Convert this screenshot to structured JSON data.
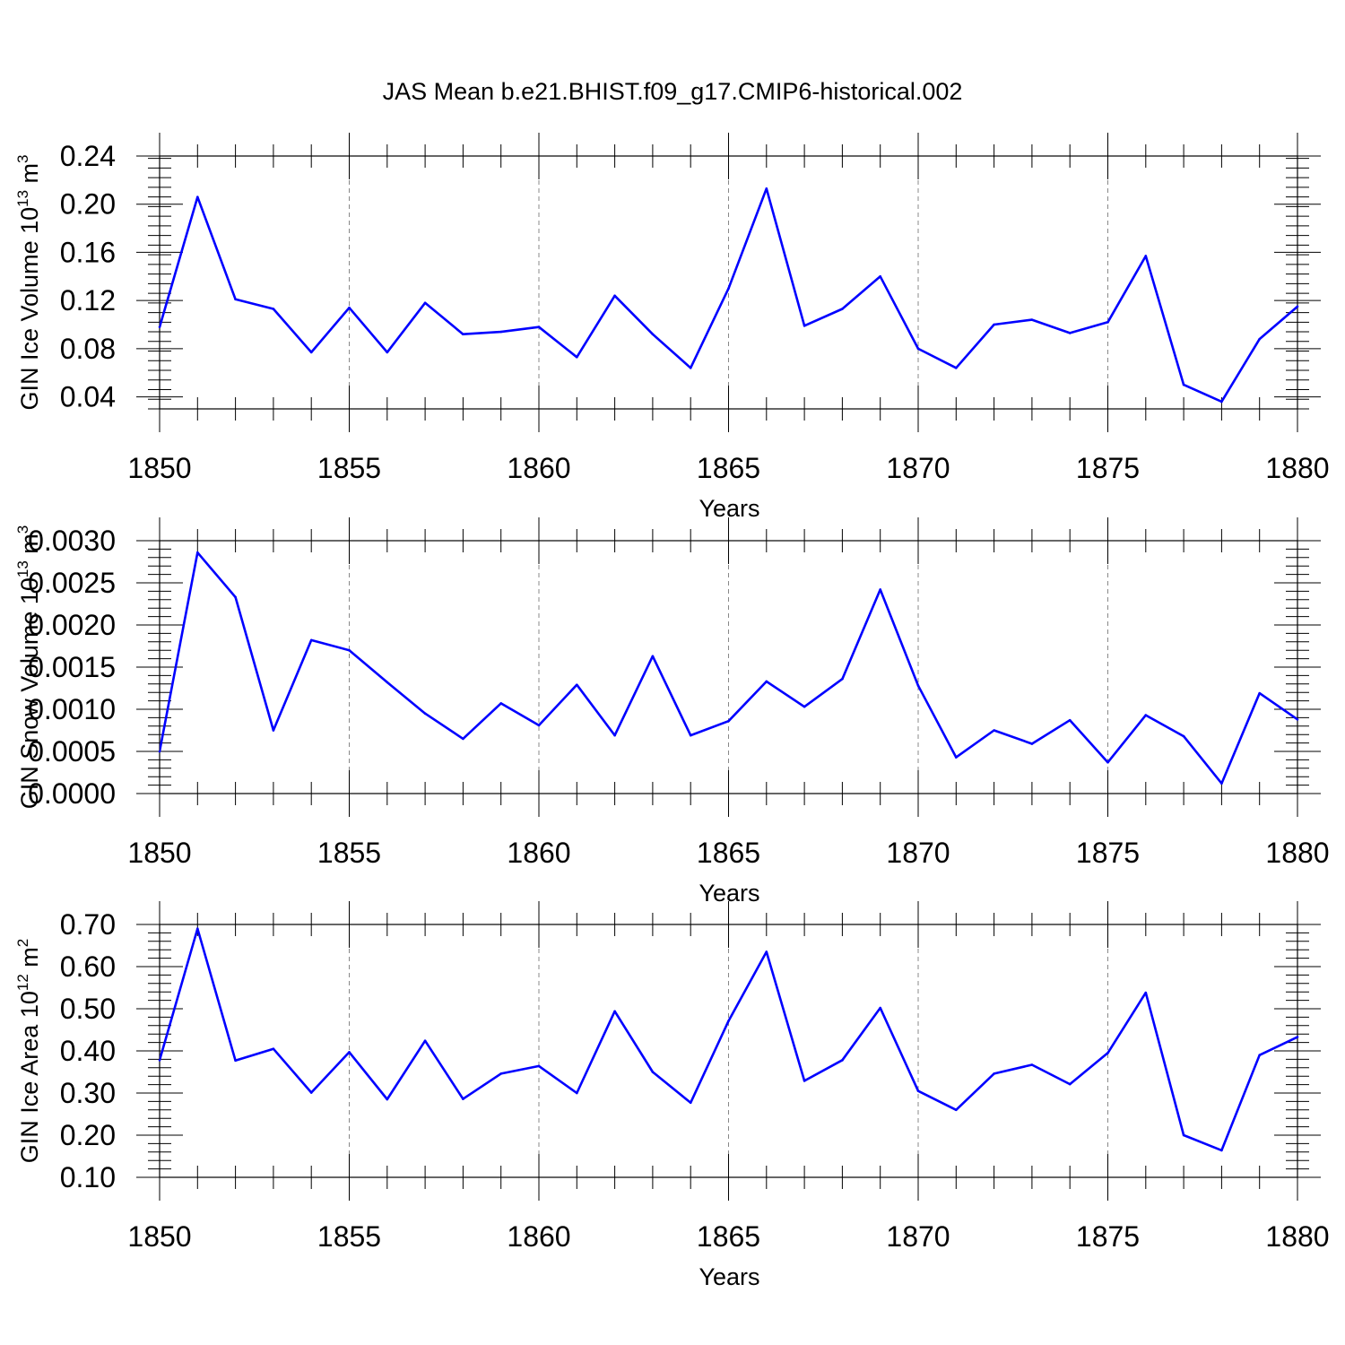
{
  "figure": {
    "title": "JAS Mean b.e21.BHIST.f09_g17.CMIP6-historical.002"
  },
  "colors": {
    "line": "#0000ff",
    "axes": "#000000",
    "grid": "#888888"
  },
  "chart_data": [
    {
      "type": "line",
      "name": "ice-volume",
      "ylabel": "GIN Ice Volume 10",
      "ylabel_exp": "13",
      "ylabel_unit": " m",
      "ylabel_unit_exp": "3",
      "xlabel": "Years",
      "xlim": [
        1850,
        1880
      ],
      "ylim": [
        0.03,
        0.24
      ],
      "xticks": [
        1850,
        1855,
        1860,
        1865,
        1870,
        1875,
        1880
      ],
      "xtick_labels": [
        "1850",
        "1855",
        "1860",
        "1865",
        "1870",
        "1875",
        "1880"
      ],
      "yticks": [
        0.04,
        0.08,
        0.12,
        0.16,
        0.2,
        0.24
      ],
      "ytick_labels": [
        "0.04",
        "0.08",
        "0.12",
        "0.16",
        "0.20",
        "0.24"
      ],
      "yminor": 0.008,
      "grid": "dashed vertical at major x ticks",
      "x": [
        1850,
        1851,
        1852,
        1853,
        1854,
        1855,
        1856,
        1857,
        1858,
        1859,
        1860,
        1861,
        1862,
        1863,
        1864,
        1865,
        1866,
        1867,
        1868,
        1869,
        1870,
        1871,
        1872,
        1873,
        1874,
        1875,
        1876,
        1877,
        1878,
        1879,
        1880
      ],
      "values": [
        0.098,
        0.206,
        0.121,
        0.113,
        0.077,
        0.114,
        0.077,
        0.118,
        0.092,
        0.094,
        0.098,
        0.073,
        0.124,
        0.092,
        0.064,
        0.13,
        0.213,
        0.099,
        0.113,
        0.14,
        0.08,
        0.064,
        0.1,
        0.104,
        0.093,
        0.102,
        0.157,
        0.05,
        0.036,
        0.088,
        0.115
      ]
    },
    {
      "type": "line",
      "name": "snow-volume",
      "ylabel": "GIN Snow Volume 10",
      "ylabel_exp": "13",
      "ylabel_unit": " m",
      "ylabel_unit_exp": "3",
      "xlabel": "Years",
      "xlim": [
        1850,
        1880
      ],
      "ylim": [
        0,
        0.003
      ],
      "xticks": [
        1850,
        1855,
        1860,
        1865,
        1870,
        1875,
        1880
      ],
      "xtick_labels": [
        "1850",
        "1855",
        "1860",
        "1865",
        "1870",
        "1875",
        "1880"
      ],
      "yticks": [
        0,
        0.0005,
        0.001,
        0.0015,
        0.002,
        0.0025,
        0.003
      ],
      "ytick_labels": [
        "0.0000",
        "0.0005",
        "0.0010",
        "0.0015",
        "0.0020",
        "0.0025",
        "0.0030"
      ],
      "yminor": 0.0001,
      "grid": "dashed vertical at major x ticks",
      "x": [
        1850,
        1851,
        1852,
        1853,
        1854,
        1855,
        1856,
        1857,
        1858,
        1859,
        1860,
        1861,
        1862,
        1863,
        1864,
        1865,
        1866,
        1867,
        1868,
        1869,
        1870,
        1871,
        1872,
        1873,
        1874,
        1875,
        1876,
        1877,
        1878,
        1879,
        1880
      ],
      "values": [
        0.0005,
        0.00286,
        0.00233,
        0.00075,
        0.00182,
        0.0017,
        0.00132,
        0.00095,
        0.00065,
        0.00107,
        0.00081,
        0.00129,
        0.00069,
        0.00163,
        0.00069,
        0.00086,
        0.00133,
        0.00103,
        0.00136,
        0.00242,
        0.00128,
        0.00043,
        0.00075,
        0.00059,
        0.00087,
        0.00037,
        0.00093,
        0.00068,
        0.00012,
        0.00119,
        0.00088
      ]
    },
    {
      "type": "line",
      "name": "ice-area",
      "ylabel": "GIN Ice Area 10",
      "ylabel_exp": "12",
      "ylabel_unit": " m",
      "ylabel_unit_exp": "2",
      "xlabel": "Years",
      "xlim": [
        1850,
        1880
      ],
      "ylim": [
        0.1,
        0.7
      ],
      "xticks": [
        1850,
        1855,
        1860,
        1865,
        1870,
        1875,
        1880
      ],
      "xtick_labels": [
        "1850",
        "1855",
        "1860",
        "1865",
        "1870",
        "1875",
        "1880"
      ],
      "yticks": [
        0.1,
        0.2,
        0.3,
        0.4,
        0.5,
        0.6,
        0.7
      ],
      "ytick_labels": [
        "0.10",
        "0.20",
        "0.30",
        "0.40",
        "0.50",
        "0.60",
        "0.70"
      ],
      "yminor": 0.02,
      "grid": "dashed vertical at major x ticks",
      "x": [
        1850,
        1851,
        1852,
        1853,
        1854,
        1855,
        1856,
        1857,
        1858,
        1859,
        1860,
        1861,
        1862,
        1863,
        1864,
        1865,
        1866,
        1867,
        1868,
        1869,
        1870,
        1871,
        1872,
        1873,
        1874,
        1875,
        1876,
        1877,
        1878,
        1879,
        1880
      ],
      "values": [
        0.378,
        0.69,
        0.377,
        0.405,
        0.301,
        0.397,
        0.285,
        0.424,
        0.286,
        0.346,
        0.364,
        0.3,
        0.494,
        0.35,
        0.277,
        0.471,
        0.635,
        0.329,
        0.378,
        0.502,
        0.305,
        0.26,
        0.346,
        0.367,
        0.321,
        0.395,
        0.538,
        0.2,
        0.164,
        0.39,
        0.433
      ]
    }
  ]
}
